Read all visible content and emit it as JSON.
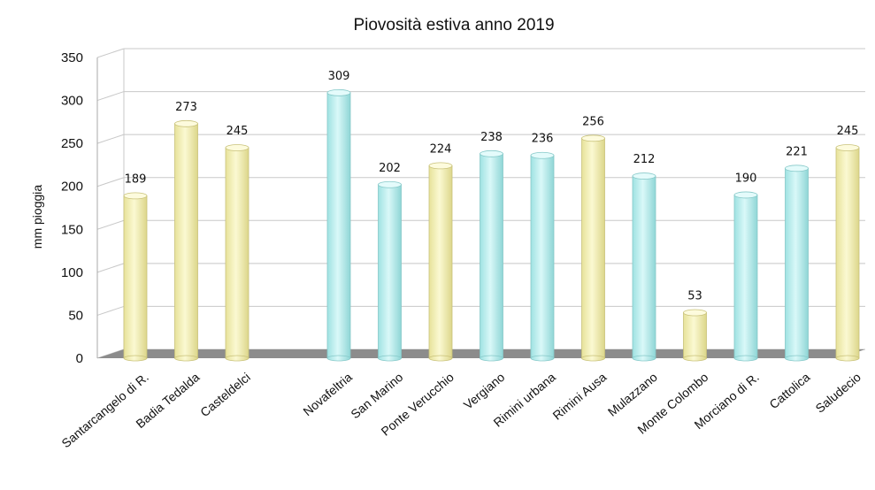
{
  "chart_data": {
    "type": "bar",
    "title": "Piovosità estiva anno 2019",
    "xlabel": "",
    "ylabel": "mm pioggia",
    "ylim": [
      0,
      350
    ],
    "yticks": [
      "0",
      "50",
      "100",
      "150",
      "200",
      "250",
      "300",
      "350"
    ],
    "grid": true,
    "categories": [
      "Santarcangelo di R.",
      "Badia Tedalda",
      "Casteldelci",
      "",
      "Novafeltria",
      "San Marino",
      "Ponte Verucchio",
      "Vergiano",
      "Rimini urbana",
      "Rimini Ausa",
      "Mulazzano",
      "Monte Colombo",
      "Morciano di R.",
      "Cattolica",
      "Saludecio"
    ],
    "values": [
      189,
      273,
      245,
      null,
      309,
      202,
      224,
      238,
      236,
      256,
      212,
      53,
      190,
      221,
      245
    ],
    "colors": [
      "yellow",
      "yellow",
      "yellow",
      null,
      "cyan",
      "cyan",
      "yellow",
      "cyan",
      "cyan",
      "yellow",
      "cyan",
      "yellow",
      "cyan",
      "cyan",
      "yellow"
    ],
    "palette": {
      "yellow": "#f6f3b8",
      "cyan": "#bff1f1",
      "floor": "#8c8c8c",
      "grid": "#c8c8c8"
    }
  }
}
